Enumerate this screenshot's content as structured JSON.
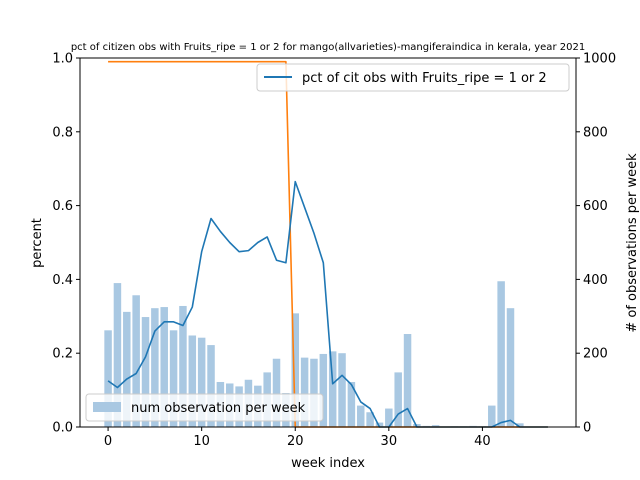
{
  "chart_data": {
    "type": "bar+line",
    "title": "pct of citizen obs with Fruits_ripe = 1 or 2 for mango(allvarieties)-mangiferaindica in kerala, year 2021",
    "xlabel": "week index",
    "ylabel": "percent",
    "y2label": "# of observations per week",
    "xlim": [
      -3,
      50
    ],
    "ylim": [
      0,
      1.0
    ],
    "y2lim": [
      0,
      1000
    ],
    "xticks": [
      0,
      10,
      20,
      30,
      40
    ],
    "yticks": [
      0.0,
      0.2,
      0.4,
      0.6,
      0.8,
      1.0
    ],
    "y2ticks": [
      0,
      200,
      400,
      600,
      800,
      1000
    ],
    "xtick_labels": [
      "0",
      "10",
      "20",
      "30",
      "40"
    ],
    "ytick_labels": [
      "0.0",
      "0.2",
      "0.4",
      "0.6",
      "0.8",
      "1.0"
    ],
    "y2tick_labels": [
      "0",
      "200",
      "400",
      "600",
      "800",
      "1000"
    ],
    "grid": false,
    "colors": {
      "pct_line": "#1f77b4",
      "bars": "#a9c8e2",
      "orange_line": "#ff7f0e"
    },
    "series": [
      {
        "name": "pct of cit obs with Fruits_ripe = 1 or 2",
        "kind": "line",
        "axis": "left",
        "x": [
          0,
          1,
          2,
          3,
          4,
          5,
          6,
          7,
          8,
          9,
          10,
          11,
          12,
          13,
          14,
          15,
          16,
          17,
          18,
          19,
          20,
          21,
          22,
          23,
          24,
          25,
          26,
          27,
          28,
          29,
          30,
          31,
          32,
          33,
          34,
          35,
          36,
          37,
          38,
          39,
          40,
          41,
          42,
          43,
          44,
          45,
          46,
          47
        ],
        "values": [
          0.125,
          0.107,
          0.13,
          0.145,
          0.19,
          0.26,
          0.285,
          0.285,
          0.275,
          0.325,
          0.475,
          0.565,
          0.53,
          0.5,
          0.475,
          0.478,
          0.5,
          0.515,
          0.452,
          0.445,
          0.665,
          0.595,
          0.525,
          0.445,
          0.117,
          0.14,
          0.115,
          0.068,
          0.05,
          0.0,
          0.0,
          0.035,
          0.05,
          0.0,
          0.0,
          0.0,
          0.0,
          0.0,
          0.0,
          0.0,
          0.0,
          0.0,
          0.012,
          0.018,
          0.0,
          0.0,
          0.0,
          0.0
        ]
      },
      {
        "name": "num observation per week",
        "kind": "bar",
        "axis": "right",
        "x": [
          0,
          1,
          2,
          3,
          4,
          5,
          6,
          7,
          8,
          9,
          10,
          11,
          12,
          13,
          14,
          15,
          16,
          17,
          18,
          19,
          20,
          21,
          22,
          23,
          24,
          25,
          26,
          27,
          28,
          29,
          30,
          31,
          32,
          33,
          34,
          35,
          36,
          37,
          38,
          39,
          40,
          41,
          42,
          43,
          44,
          45,
          46,
          47
        ],
        "values": [
          262,
          390,
          312,
          357,
          298,
          322,
          325,
          262,
          328,
          248,
          242,
          222,
          122,
          118,
          110,
          128,
          112,
          148,
          185,
          92,
          308,
          188,
          185,
          198,
          205,
          200,
          122,
          58,
          40,
          12,
          50,
          148,
          252,
          8,
          3,
          5,
          0,
          2,
          2,
          3,
          2,
          58,
          395,
          322,
          10,
          0,
          0,
          0
        ]
      },
      {
        "kind": "line",
        "axis": "left",
        "x": [
          0,
          1,
          2,
          3,
          4,
          5,
          6,
          7,
          8,
          9,
          10,
          11,
          12,
          13,
          14,
          15,
          16,
          17,
          18,
          19,
          20,
          21,
          22,
          23,
          24,
          25,
          26,
          27,
          28,
          29,
          30,
          31,
          32,
          33,
          34,
          35,
          36,
          37,
          38,
          39,
          40,
          41,
          42,
          43,
          44,
          45,
          46,
          47
        ],
        "values": [
          0.99,
          0.99,
          0.99,
          0.99,
          0.99,
          0.99,
          0.99,
          0.99,
          0.99,
          0.99,
          0.99,
          0.99,
          0.99,
          0.99,
          0.99,
          0.99,
          0.99,
          0.99,
          0.99,
          0.99,
          0.0,
          0.0,
          0.0,
          0.0,
          0.0,
          0.0,
          0.0,
          0.0,
          0.0,
          0.0,
          0.0,
          0.0,
          0.0,
          0.0,
          0.0,
          0.0,
          0.0,
          0.0,
          0.0,
          0.0,
          0.0,
          0.0,
          0.0,
          0.0,
          0.0,
          0.0,
          0.0,
          0.0
        ]
      }
    ],
    "legend": [
      {
        "label": "pct of cit obs with Fruits_ripe = 1 or 2",
        "placement": "top-right",
        "marker": "line"
      },
      {
        "label": "num observation per week",
        "placement": "lower-left",
        "marker": "patch"
      }
    ]
  }
}
